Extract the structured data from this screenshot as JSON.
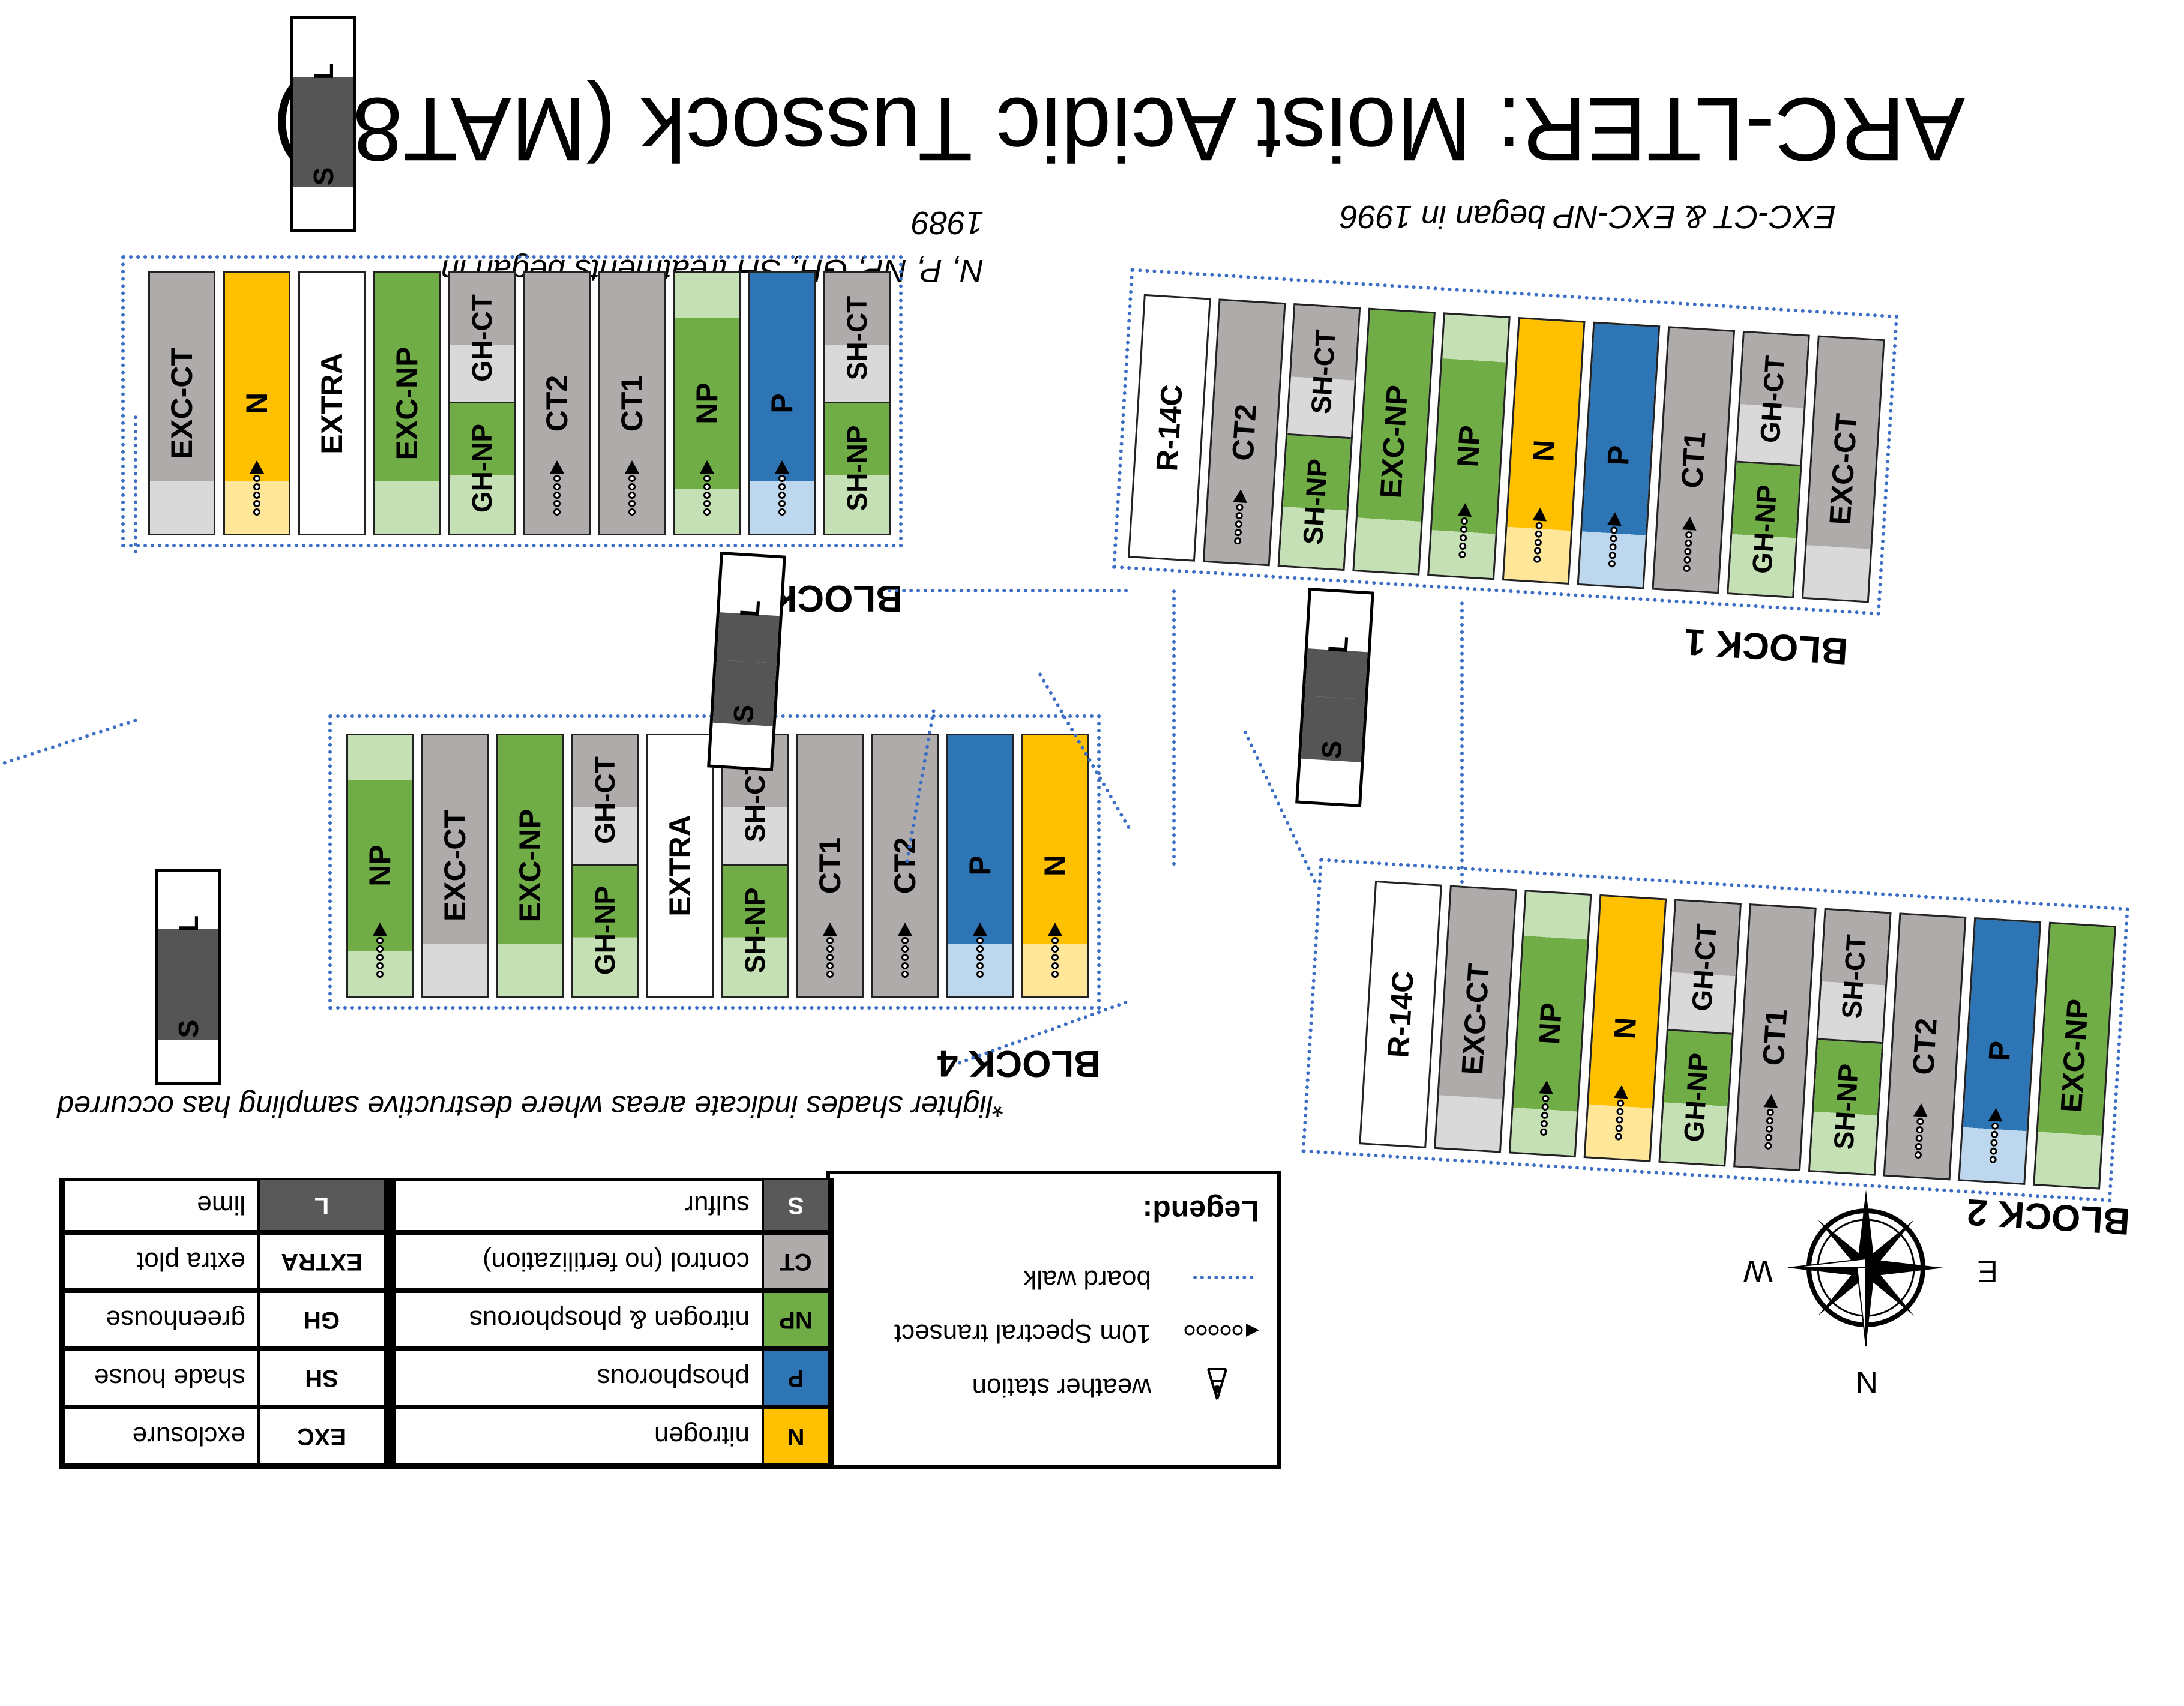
{
  "title": "ARC-LTER: Moist Acidic Tussock (MAT89)",
  "notes": {
    "began_1989_line1": "N, P, NP, GH, SH treatments began in",
    "began_1989_line2": "1989",
    "began_1996": "EXC-CT & EXC-NP began in 1996",
    "lighter_shades": "*lighter shades indicate areas where destructive sampling has occurred"
  },
  "compass": {
    "n": "N",
    "s": "S",
    "e": "E",
    "w": "W"
  },
  "colors": {
    "N": "#ffc000",
    "N_light": "#ffe699",
    "P": "#2e75b6",
    "P_light": "#bdd7ee",
    "NP": "#70ad47",
    "NP_light": "#c5e0b4",
    "CT": "#afabab",
    "CT_light": "#d9d9d9",
    "S_L": "#595959",
    "boardwalk": "#3b6ec4"
  },
  "legend": {
    "title": "Legend:",
    "symbols": [
      {
        "icon": "dotted-line-icon",
        "label": "board walk"
      },
      {
        "icon": "transect-arrow-icon",
        "label": "10m Spectral transect"
      },
      {
        "icon": "weather-station-icon",
        "label": "weather station"
      }
    ],
    "colored": [
      {
        "code": "N",
        "label": "nitrogen",
        "color": "#ffc000"
      },
      {
        "code": "P",
        "label": "phosphorous",
        "color": "#2e75b6"
      },
      {
        "code": "NP",
        "label": "nitrogen & phosphorous",
        "color": "#70ad47"
      },
      {
        "code": "CT",
        "label": "control (no fertilization)",
        "color": "#afabab"
      },
      {
        "code": "S",
        "label": "sulfur",
        "color": "#595959"
      }
    ],
    "text": [
      {
        "code": "EXC",
        "label": "exclosure"
      },
      {
        "code": "SH",
        "label": "shade house"
      },
      {
        "code": "GH",
        "label": "greenhouse"
      },
      {
        "code": "EXTRA",
        "label": "extra plot"
      },
      {
        "code": "L",
        "label": "lime"
      }
    ]
  },
  "blocks": [
    {
      "id": "block-1",
      "label": "BLOCK 1",
      "plots": [
        "EXC-CT",
        "GH-NP|GH-CT",
        "CT1",
        "P",
        "N",
        "NP",
        "EXC-NP",
        "SH-NP|SH-CT",
        "CT2",
        "R-14C"
      ]
    },
    {
      "id": "block-2",
      "label": "BLOCK 2",
      "plots": [
        "EXC-NP",
        "P",
        "CT2",
        "SH-NP|SH-CT",
        "CT1",
        "GH-NP|GH-CT",
        "N",
        "NP",
        "EXC-CT",
        "R-14C"
      ]
    },
    {
      "id": "block-3",
      "label": "BLOCK 3",
      "plots": [
        "SH-NP|SH-CT",
        "P",
        "NP",
        "CT1",
        "CT2",
        "GH-NP|GH-CT",
        "EXC-NP",
        "EXTRA",
        "N",
        "EXC-CT"
      ]
    },
    {
      "id": "block-4",
      "label": "BLOCK 4",
      "plots": [
        "N",
        "P",
        "CT2",
        "CT1",
        "SH-NP|SH-CT",
        "EXTRA",
        "GH-NP|GH-CT",
        "EXC-NP",
        "EXC-CT",
        "NP"
      ]
    }
  ],
  "sl_labels": {
    "s": "S",
    "l": "L"
  }
}
